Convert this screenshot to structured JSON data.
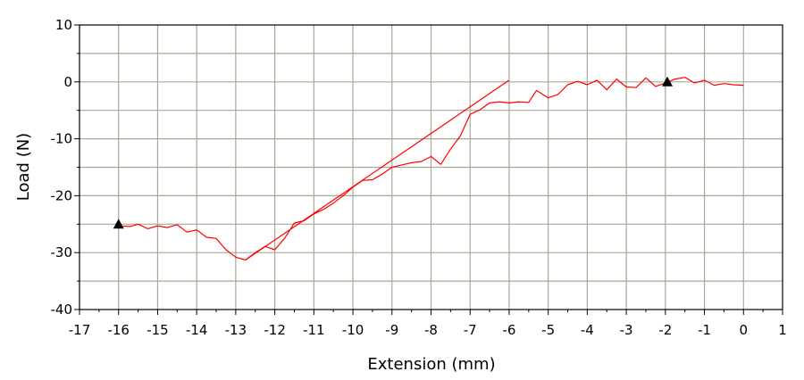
{
  "chart_data": {
    "type": "line",
    "title": "",
    "xlabel": "Extension (mm)",
    "ylabel": "Load (N)",
    "xlim": [
      -17,
      1
    ],
    "ylim": [
      -40,
      10
    ],
    "x_ticks": [
      "-17",
      "-16",
      "-15",
      "-14",
      "-13",
      "-12",
      "-11",
      "-10",
      "-9",
      "-8",
      "-7",
      "-6",
      "-5",
      "-4",
      "-3",
      "-2",
      "-1",
      "0",
      "1"
    ],
    "y_ticks": [
      "10",
      "0",
      "-10",
      "-20",
      "-30",
      "-40"
    ],
    "grid": true,
    "grid_color": "#aaa596",
    "series": [
      {
        "color": "#ff0000",
        "points": [
          [
            -16.0,
            -25.3
          ],
          [
            -15.7,
            -25.4
          ],
          [
            -15.5,
            -25.0
          ],
          [
            -15.25,
            -25.8
          ],
          [
            -15.0,
            -25.3
          ],
          [
            -14.75,
            -25.6
          ],
          [
            -14.5,
            -25.1
          ],
          [
            -14.25,
            -26.4
          ],
          [
            -14.0,
            -26.0
          ],
          [
            -13.75,
            -27.3
          ],
          [
            -13.5,
            -27.5
          ],
          [
            -13.25,
            -29.5
          ],
          [
            -13.0,
            -30.8
          ],
          [
            -12.75,
            -31.3
          ],
          [
            -12.5,
            -30.0
          ],
          [
            -12.25,
            -28.9
          ],
          [
            -12.0,
            -29.5
          ],
          [
            -11.75,
            -27.5
          ],
          [
            -11.5,
            -24.8
          ],
          [
            -11.25,
            -24.4
          ],
          [
            -11.0,
            -23.2
          ],
          [
            -10.75,
            -22.4
          ],
          [
            -10.5,
            -21.3
          ],
          [
            -10.25,
            -20.0
          ],
          [
            -10.0,
            -18.5
          ],
          [
            -9.75,
            -17.3
          ],
          [
            -9.5,
            -17.2
          ],
          [
            -9.25,
            -16.2
          ],
          [
            -9.0,
            -15.0
          ],
          [
            -8.75,
            -14.6
          ],
          [
            -8.5,
            -14.2
          ],
          [
            -8.25,
            -14.0
          ],
          [
            -8.0,
            -13.1
          ],
          [
            -7.75,
            -14.5
          ],
          [
            -7.5,
            -11.8
          ],
          [
            -7.25,
            -9.5
          ],
          [
            -7.0,
            -5.7
          ],
          [
            -6.75,
            -4.9
          ],
          [
            -6.5,
            -3.7
          ],
          [
            -6.25,
            -3.5
          ],
          [
            -6.0,
            -3.7
          ],
          [
            -5.75,
            -3.5
          ],
          [
            -5.5,
            -3.6
          ],
          [
            -5.3,
            -1.5
          ],
          [
            -5.0,
            -2.8
          ],
          [
            -4.75,
            -2.2
          ],
          [
            -4.5,
            -0.5
          ],
          [
            -4.25,
            0.1
          ],
          [
            -4.0,
            -0.5
          ],
          [
            -3.75,
            0.3
          ],
          [
            -3.5,
            -1.4
          ],
          [
            -3.25,
            0.5
          ],
          [
            -3.0,
            -0.9
          ],
          [
            -2.75,
            -1.0
          ],
          [
            -2.5,
            0.7
          ],
          [
            -2.25,
            -0.8
          ],
          [
            -2.0,
            -0.2
          ],
          [
            -1.75,
            0.5
          ],
          [
            -1.5,
            0.8
          ],
          [
            -1.25,
            -0.2
          ],
          [
            -1.0,
            0.3
          ],
          [
            -0.75,
            -0.6
          ],
          [
            -0.5,
            -0.3
          ],
          [
            -0.25,
            -0.5
          ],
          [
            0.0,
            -0.6
          ]
        ]
      },
      {
        "color": "#ff0000",
        "points": [
          [
            -12.75,
            -31.3
          ],
          [
            -6.0,
            0.3
          ]
        ]
      }
    ],
    "markers": [
      {
        "x": -16.0,
        "y": -25.0,
        "shape": "triangle",
        "color": "#000000"
      },
      {
        "x": -1.95,
        "y": 0.0,
        "shape": "triangle",
        "color": "#000000"
      }
    ]
  }
}
